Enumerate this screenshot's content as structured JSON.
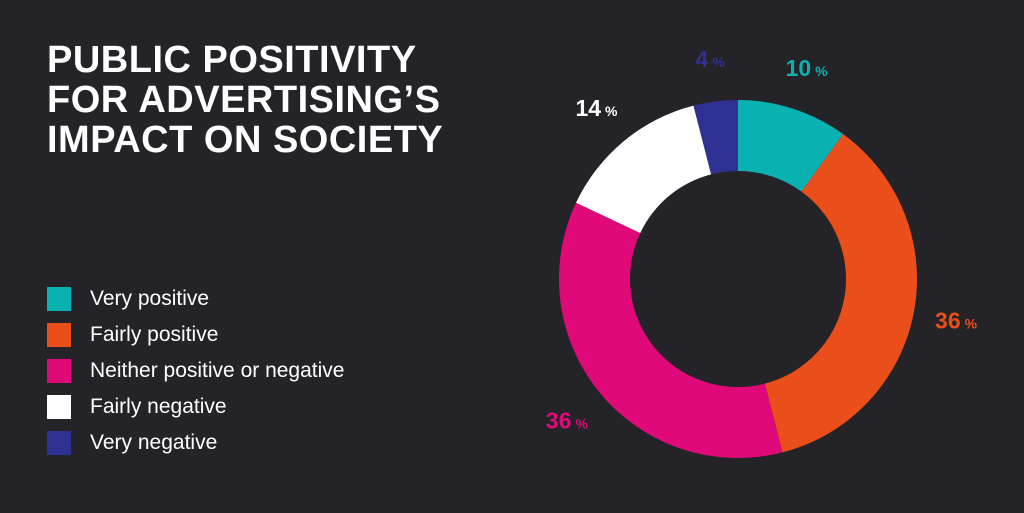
{
  "title_lines": [
    "PUBLIC POSITIVITY",
    "FOR ADVERTISING’S",
    "IMPACT ON SOCIETY"
  ],
  "colors": {
    "background": "#242327",
    "very_positive": "#0ab1b1",
    "fairly_positive": "#e94e1b",
    "neither": "#e0097a",
    "fairly_negative": "#ffffff",
    "very_negative": "#2e3192"
  },
  "chart_data": {
    "type": "pie",
    "variant": "donut",
    "title": "PUBLIC POSITIVITY FOR ADVERTISING’S IMPACT ON SOCIETY",
    "unit": "%",
    "legend_position": "left",
    "slices": [
      {
        "label": "Very positive",
        "value": 10,
        "display": "10",
        "color": "#0ab1b1"
      },
      {
        "label": "Fairly positive",
        "value": 36,
        "display": "36",
        "color": "#e94e1b"
      },
      {
        "label": "Neither positive or negative",
        "value": 36,
        "display": "36",
        "color": "#e0097a"
      },
      {
        "label": "Fairly negative",
        "value": 14,
        "display": "14",
        "color": "#ffffff"
      },
      {
        "label": "Very negative",
        "value": 4,
        "display": "4",
        "color": "#2e3192"
      }
    ]
  }
}
